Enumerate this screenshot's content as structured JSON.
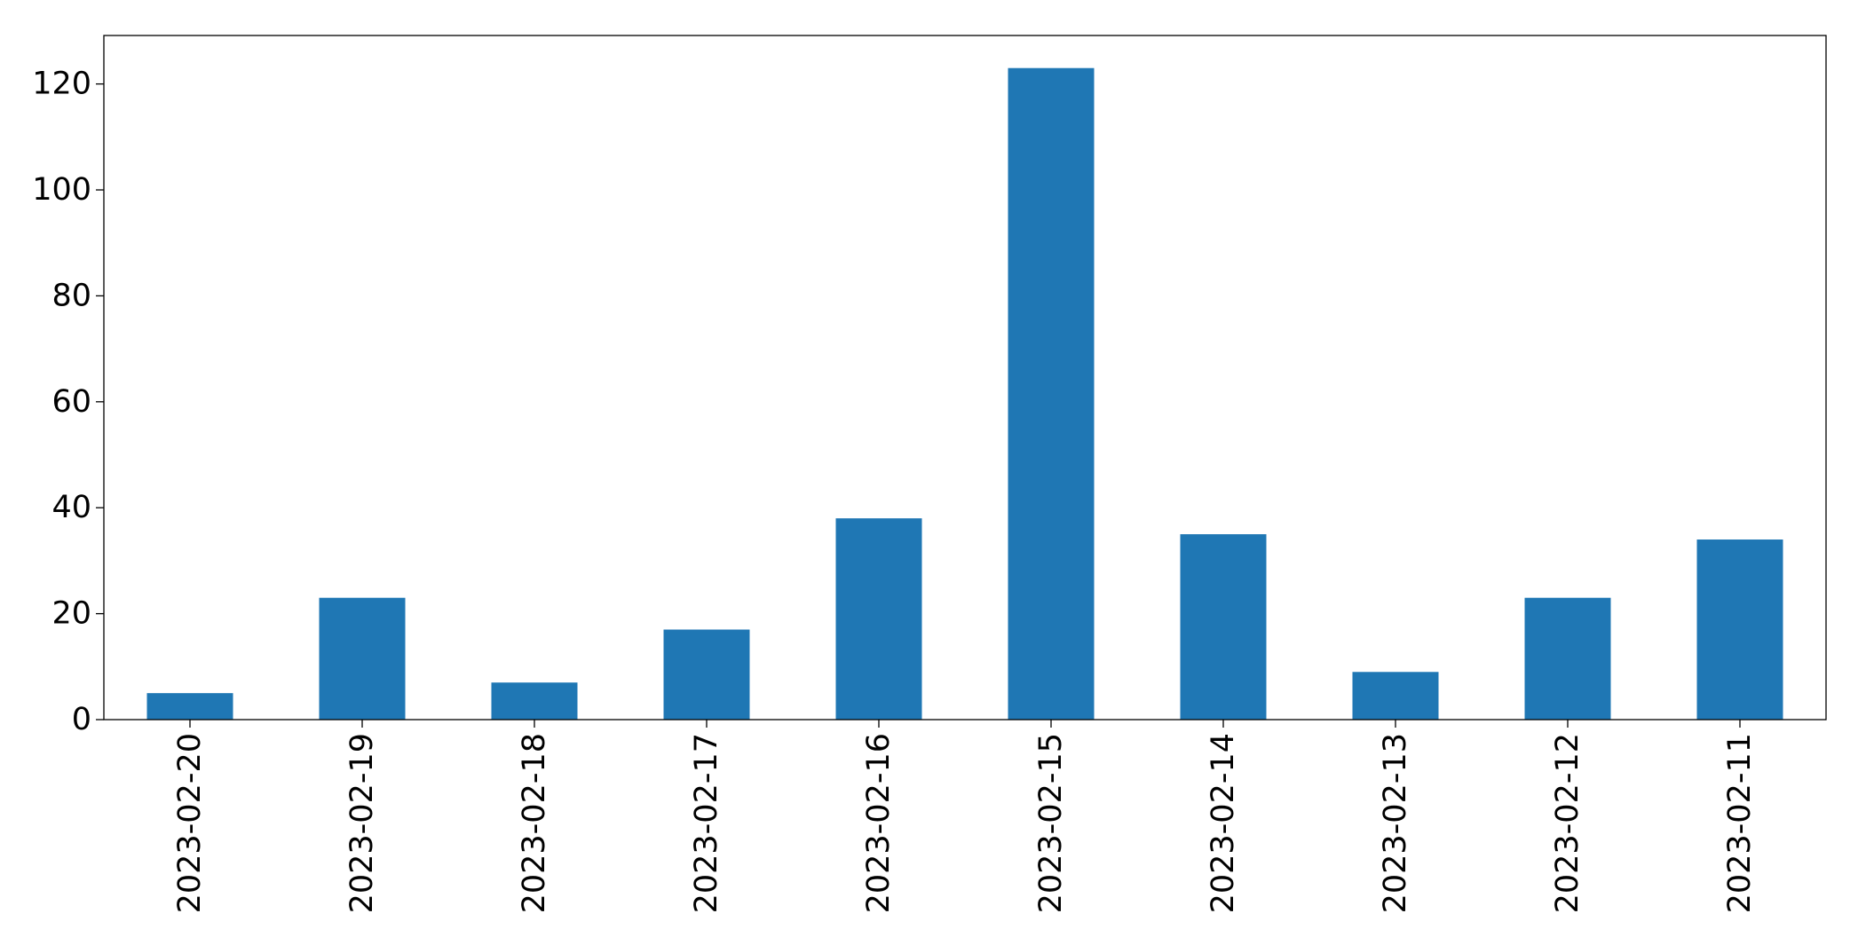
{
  "chart_data": {
    "type": "bar",
    "categories": [
      "2023-02-20",
      "2023-02-19",
      "2023-02-18",
      "2023-02-17",
      "2023-02-16",
      "2023-02-15",
      "2023-02-14",
      "2023-02-13",
      "2023-02-12",
      "2023-02-11"
    ],
    "values": [
      5,
      23,
      7,
      17,
      38,
      123,
      35,
      9,
      23,
      34
    ],
    "ylim": [
      0,
      129.15
    ],
    "yticks": [
      0,
      20,
      40,
      60,
      80,
      100,
      120
    ],
    "title": "",
    "xlabel": "",
    "ylabel": "",
    "grid": false,
    "legend": false,
    "colors": {
      "bar": "#1f77b4",
      "axis": "#000000",
      "background": "#ffffff"
    }
  }
}
